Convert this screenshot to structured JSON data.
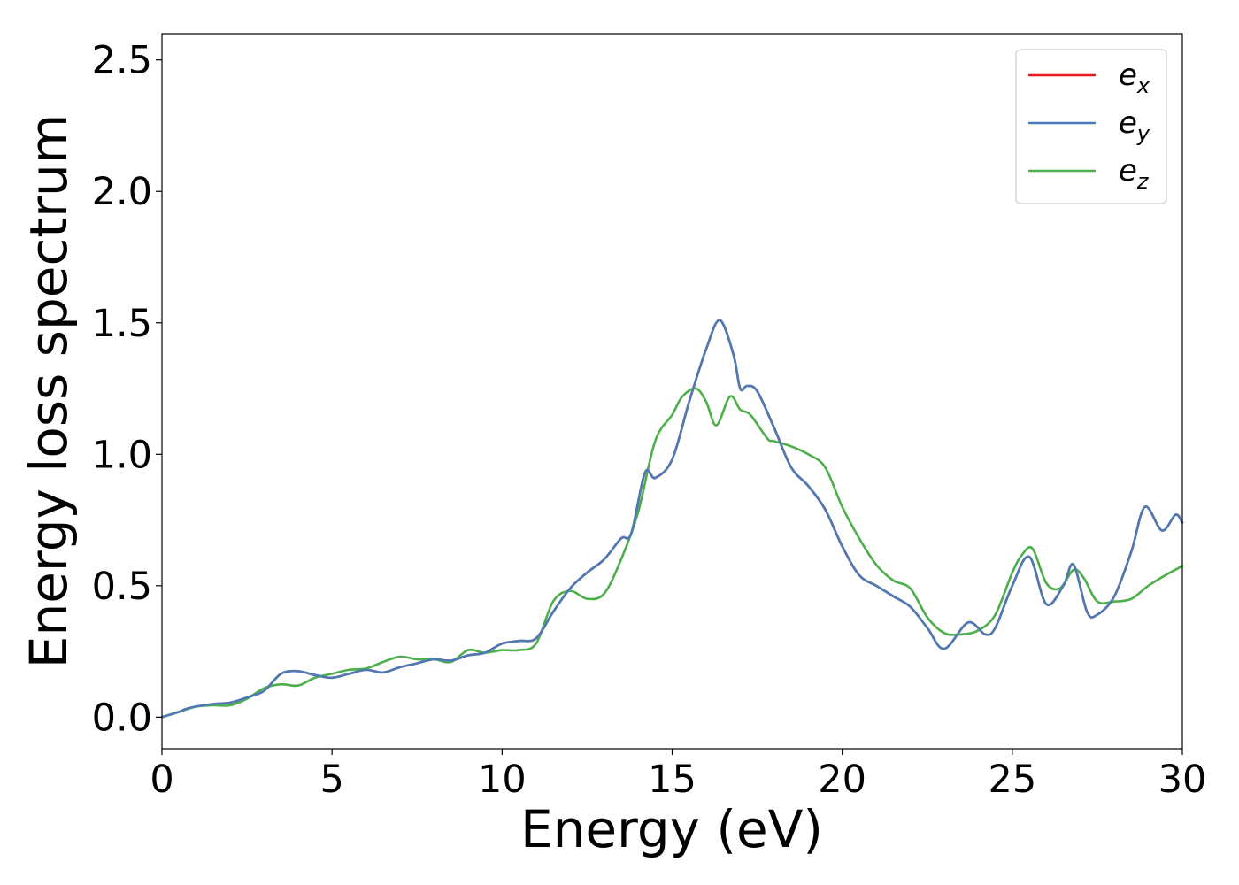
{
  "chart_data": {
    "type": "line",
    "title": "",
    "xlabel": "Energy (eV)",
    "ylabel": "Energy loss spectrum",
    "xlim": [
      0,
      30
    ],
    "ylim": [
      -0.12,
      2.6
    ],
    "xticks": [
      0,
      5,
      10,
      15,
      20,
      25,
      30
    ],
    "xtick_labels": [
      "0",
      "5",
      "10",
      "15",
      "20",
      "25",
      "30"
    ],
    "yticks": [
      0.0,
      0.5,
      1.0,
      1.5,
      2.0,
      2.5
    ],
    "ytick_labels": [
      "0.0",
      "0.5",
      "1.0",
      "1.5",
      "2.0",
      "2.5"
    ],
    "grid": false,
    "legend_position": "top-right",
    "series": [
      {
        "name": "e_x",
        "label_main": "e",
        "label_sub": "x",
        "color": "#e41a1c",
        "x": [
          0.0,
          0.5,
          0.8,
          1.5,
          2.0,
          2.5,
          3.0,
          3.5,
          4.0,
          4.5,
          5.0,
          5.5,
          6.0,
          6.5,
          7.0,
          7.5,
          8.0,
          8.5,
          9.0,
          9.5,
          10.0,
          10.5,
          11.0,
          11.5,
          12.0,
          12.5,
          13.0,
          13.5,
          13.8,
          14.2,
          14.5,
          15.0,
          15.5,
          16.0,
          16.4,
          16.8,
          17.0,
          17.2,
          17.5,
          18.0,
          18.5,
          19.0,
          19.5,
          20.0,
          20.5,
          21.0,
          21.5,
          22.0,
          22.5,
          23.0,
          23.7,
          24.2,
          24.5,
          25.0,
          25.5,
          26.0,
          26.5,
          26.8,
          27.2,
          27.5,
          28.0,
          28.5,
          28.9,
          29.4,
          29.8,
          30.0
        ],
        "y": [
          0.0,
          0.02,
          0.035,
          0.05,
          0.055,
          0.075,
          0.1,
          0.165,
          0.175,
          0.16,
          0.15,
          0.165,
          0.18,
          0.17,
          0.19,
          0.205,
          0.22,
          0.215,
          0.235,
          0.245,
          0.28,
          0.29,
          0.3,
          0.4,
          0.49,
          0.55,
          0.6,
          0.68,
          0.7,
          0.93,
          0.91,
          0.98,
          1.2,
          1.4,
          1.51,
          1.38,
          1.25,
          1.26,
          1.24,
          1.1,
          0.95,
          0.88,
          0.79,
          0.65,
          0.54,
          0.5,
          0.46,
          0.42,
          0.34,
          0.26,
          0.36,
          0.315,
          0.34,
          0.5,
          0.61,
          0.43,
          0.5,
          0.58,
          0.4,
          0.39,
          0.46,
          0.63,
          0.8,
          0.71,
          0.77,
          0.74
        ]
      },
      {
        "name": "e_y",
        "label_main": "e",
        "label_sub": "y",
        "color": "#4a7bb7",
        "x": [
          0.0,
          0.5,
          0.8,
          1.5,
          2.0,
          2.5,
          3.0,
          3.5,
          4.0,
          4.5,
          5.0,
          5.5,
          6.0,
          6.5,
          7.0,
          7.5,
          8.0,
          8.5,
          9.0,
          9.5,
          10.0,
          10.5,
          11.0,
          11.5,
          12.0,
          12.5,
          13.0,
          13.5,
          13.8,
          14.2,
          14.5,
          15.0,
          15.5,
          16.0,
          16.4,
          16.8,
          17.0,
          17.2,
          17.5,
          18.0,
          18.5,
          19.0,
          19.5,
          20.0,
          20.5,
          21.0,
          21.5,
          22.0,
          22.5,
          23.0,
          23.7,
          24.2,
          24.5,
          25.0,
          25.5,
          26.0,
          26.5,
          26.8,
          27.2,
          27.5,
          28.0,
          28.5,
          28.9,
          29.4,
          29.8,
          30.0
        ],
        "y": [
          0.0,
          0.02,
          0.035,
          0.05,
          0.055,
          0.075,
          0.1,
          0.165,
          0.175,
          0.16,
          0.15,
          0.165,
          0.18,
          0.17,
          0.19,
          0.205,
          0.22,
          0.215,
          0.235,
          0.245,
          0.28,
          0.29,
          0.3,
          0.4,
          0.49,
          0.55,
          0.6,
          0.68,
          0.7,
          0.93,
          0.91,
          0.98,
          1.2,
          1.4,
          1.51,
          1.38,
          1.25,
          1.26,
          1.24,
          1.1,
          0.95,
          0.88,
          0.79,
          0.65,
          0.54,
          0.5,
          0.46,
          0.42,
          0.34,
          0.26,
          0.36,
          0.315,
          0.34,
          0.5,
          0.61,
          0.43,
          0.5,
          0.58,
          0.4,
          0.39,
          0.46,
          0.63,
          0.8,
          0.71,
          0.77,
          0.74
        ]
      },
      {
        "name": "e_z",
        "label_main": "e",
        "label_sub": "z",
        "color": "#4daf4a",
        "x": [
          0.0,
          0.5,
          1.0,
          1.5,
          2.0,
          2.5,
          3.0,
          3.5,
          4.0,
          4.5,
          5.0,
          5.5,
          6.0,
          6.5,
          7.0,
          7.5,
          8.0,
          8.5,
          9.0,
          9.5,
          10.0,
          10.5,
          11.0,
          11.5,
          12.0,
          12.5,
          13.0,
          13.5,
          14.0,
          14.5,
          15.0,
          15.3,
          15.7,
          16.0,
          16.3,
          16.7,
          17.0,
          17.3,
          17.8,
          18.0,
          18.5,
          19.0,
          19.5,
          20.0,
          20.5,
          21.0,
          21.5,
          22.0,
          22.5,
          23.0,
          23.5,
          24.0,
          24.5,
          25.0,
          25.3,
          25.6,
          26.0,
          26.4,
          26.8,
          27.1,
          27.5,
          28.0,
          28.5,
          29.0,
          29.5,
          30.0
        ],
        "y": [
          0.0,
          0.02,
          0.04,
          0.045,
          0.045,
          0.07,
          0.11,
          0.125,
          0.12,
          0.15,
          0.165,
          0.18,
          0.185,
          0.21,
          0.23,
          0.22,
          0.22,
          0.21,
          0.255,
          0.245,
          0.255,
          0.255,
          0.28,
          0.44,
          0.48,
          0.45,
          0.47,
          0.6,
          0.78,
          1.05,
          1.15,
          1.22,
          1.25,
          1.2,
          1.11,
          1.22,
          1.17,
          1.15,
          1.06,
          1.05,
          1.03,
          1.0,
          0.95,
          0.8,
          0.68,
          0.58,
          0.52,
          0.49,
          0.38,
          0.32,
          0.315,
          0.33,
          0.39,
          0.55,
          0.62,
          0.64,
          0.51,
          0.49,
          0.56,
          0.53,
          0.44,
          0.44,
          0.45,
          0.5,
          0.54,
          0.575
        ]
      }
    ]
  }
}
